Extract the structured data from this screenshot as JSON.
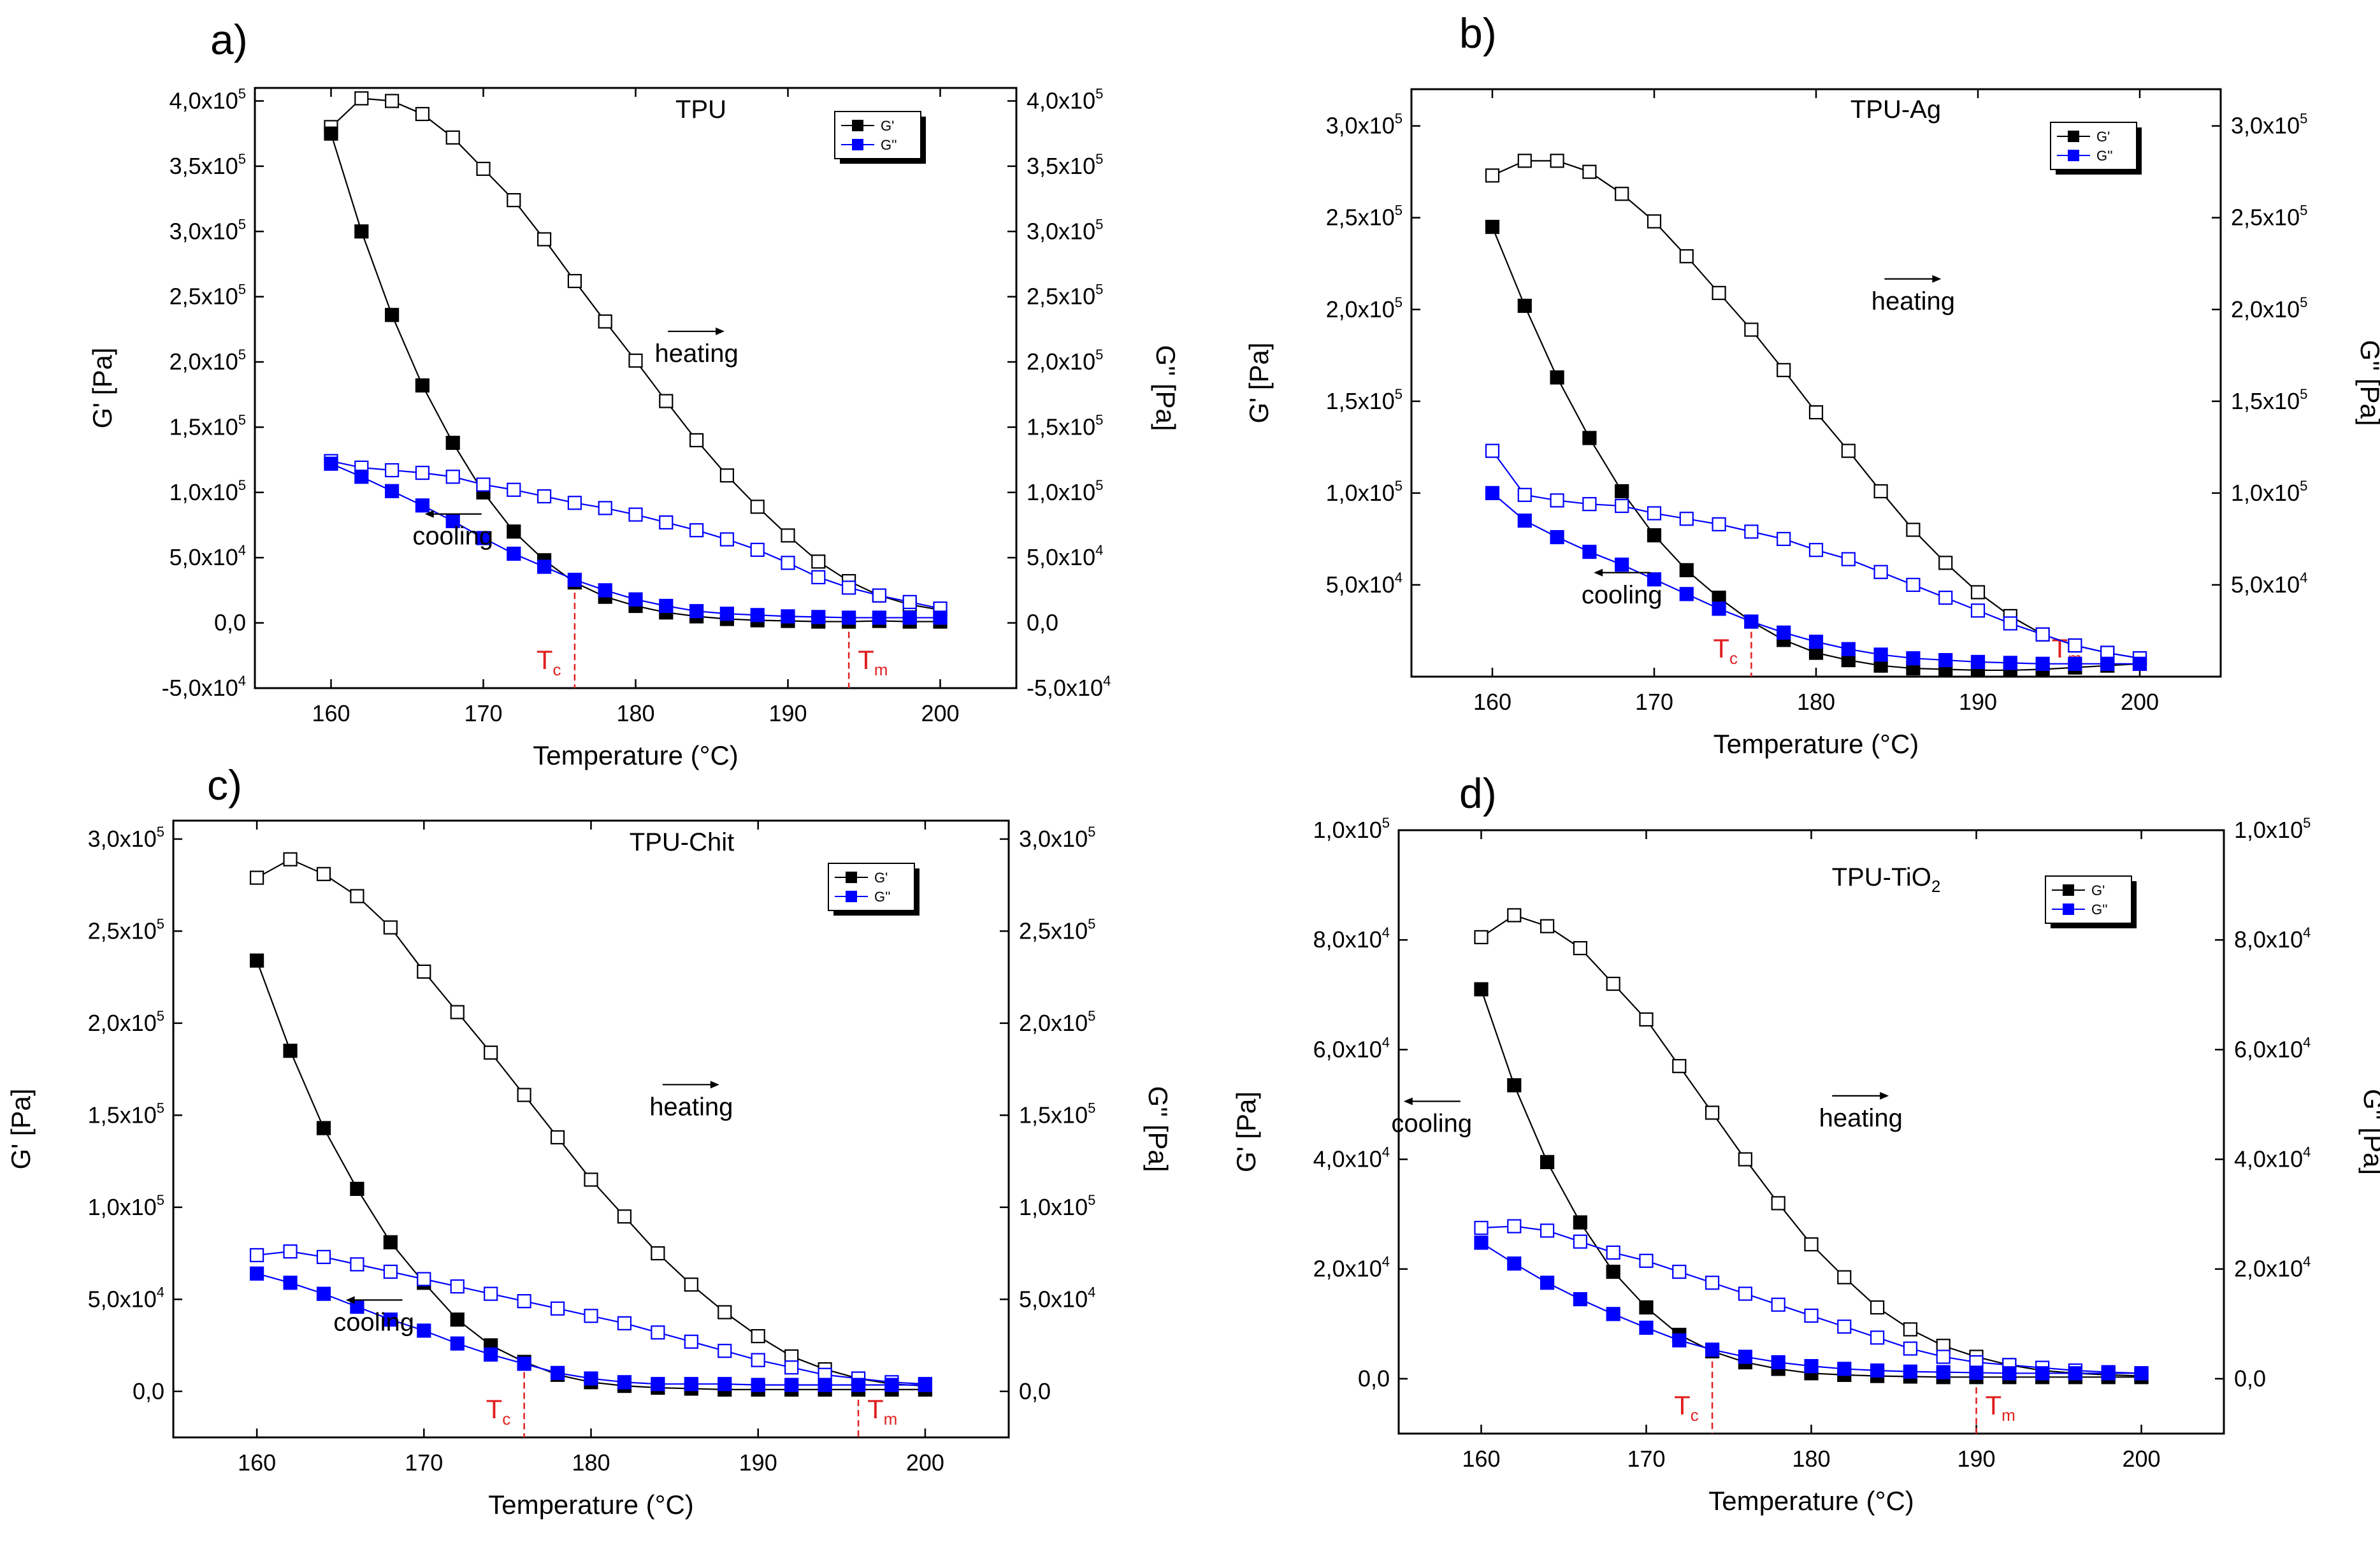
{
  "figure": {
    "x_axis_title": "Temperature (°C)",
    "left_axis_title": "G' [Pa]",
    "right_axis_title": "G'' [Pa]",
    "legend_labels": [
      "G'",
      "G''"
    ],
    "heating_label": "heating",
    "cooling_label": "cooling",
    "tc_label": "T",
    "tc_sub": "c",
    "tm_label": "T",
    "tm_sub": "m",
    "colors": {
      "g_prime": "#000000",
      "g_double_prime": "#0000ff",
      "transition_line": "#e02020"
    }
  },
  "chart_data": [
    {
      "type": "line",
      "panel": "a)",
      "title": "TPU",
      "xlabel": "Temperature (°C)",
      "ylabel": "G' [Pa]",
      "ylabel_right": "G'' [Pa]",
      "xlim": [
        155,
        205
      ],
      "ylim": [
        -50000,
        410000
      ],
      "x_ticks": [
        160,
        170,
        180,
        190,
        200
      ],
      "y_ticks": [
        {
          "v": -50000,
          "m": "-5,0",
          "e": "4"
        },
        {
          "v": 0,
          "m": "0,0",
          "e": ""
        },
        {
          "v": 50000,
          "m": "5,0",
          "e": "4"
        },
        {
          "v": 100000,
          "m": "1,0",
          "e": "5"
        },
        {
          "v": 150000,
          "m": "1,5",
          "e": "5"
        },
        {
          "v": 200000,
          "m": "2,0",
          "e": "5"
        },
        {
          "v": 250000,
          "m": "2,5",
          "e": "5"
        },
        {
          "v": 300000,
          "m": "3,0",
          "e": "5"
        },
        {
          "v": 350000,
          "m": "3,5",
          "e": "5"
        },
        {
          "v": 400000,
          "m": "4,0",
          "e": "5"
        }
      ],
      "x": [
        160,
        162,
        164,
        166,
        168,
        170,
        172,
        174,
        176,
        178,
        180,
        182,
        184,
        186,
        188,
        190,
        192,
        194,
        196,
        198,
        200
      ],
      "series": [
        {
          "name": "G' heating",
          "color": "#000000",
          "marker": "open",
          "values": [
            380000,
            402000,
            400000,
            390000,
            372000,
            348000,
            324000,
            294000,
            262000,
            231000,
            201000,
            170000,
            140000,
            113000,
            89000,
            67000,
            47000,
            32000,
            21000,
            14000,
            10000
          ]
        },
        {
          "name": "G' cooling",
          "color": "#000000",
          "marker": "filled",
          "values": [
            375000,
            300000,
            236000,
            182000,
            138000,
            100000,
            70000,
            48000,
            31000,
            20000,
            13000,
            8000,
            5000,
            3000,
            2000,
            1500,
            1000,
            1000,
            1500,
            1000,
            1000
          ]
        },
        {
          "name": "G'' heating",
          "color": "#0000ff",
          "marker": "open",
          "values": [
            124000,
            119000,
            117000,
            115000,
            112000,
            106000,
            102000,
            97000,
            92000,
            88000,
            83000,
            77000,
            71000,
            64000,
            56000,
            46000,
            35000,
            27000,
            21000,
            16000,
            11000
          ]
        },
        {
          "name": "G'' cooling",
          "color": "#0000ff",
          "marker": "filled",
          "values": [
            122000,
            112000,
            101000,
            90000,
            78000,
            65000,
            53000,
            43000,
            33000,
            25000,
            18000,
            13000,
            9000,
            7000,
            6000,
            5000,
            4500,
            4000,
            4000,
            4000,
            4000
          ]
        }
      ],
      "legend": [
        {
          "label": "G'",
          "color": "#000000"
        },
        {
          "label": "G''",
          "color": "#0000ff"
        }
      ],
      "heating_arrow_at": {
        "x": 184,
        "y": 200000
      },
      "cooling_arrow_at": {
        "x": 168,
        "y": 60000
      },
      "tc": 176,
      "tm": 194
    },
    {
      "type": "line",
      "panel": "b)",
      "title": "TPU-Ag",
      "xlabel": "Temperature (°C)",
      "ylabel": "G' [Pa]",
      "ylabel_right": "G'' [Pa]",
      "xlim": [
        155,
        205
      ],
      "ylim": [
        0,
        320000
      ],
      "x_ticks": [
        160,
        170,
        180,
        190,
        200
      ],
      "y_ticks": [
        {
          "v": 50000,
          "m": "5,0",
          "e": "4"
        },
        {
          "v": 100000,
          "m": "1,0",
          "e": "5"
        },
        {
          "v": 150000,
          "m": "1,5",
          "e": "5"
        },
        {
          "v": 200000,
          "m": "2,0",
          "e": "5"
        },
        {
          "v": 250000,
          "m": "2,5",
          "e": "5"
        },
        {
          "v": 300000,
          "m": "3,0",
          "e": "5"
        }
      ],
      "x": [
        160,
        162,
        164,
        166,
        168,
        170,
        172,
        174,
        176,
        178,
        180,
        182,
        184,
        186,
        188,
        190,
        192,
        194,
        196,
        198,
        200
      ],
      "series": [
        {
          "name": "G' heating",
          "color": "#000000",
          "marker": "open",
          "values": [
            273000,
            281000,
            281000,
            275000,
            263000,
            248000,
            229000,
            209000,
            189000,
            167000,
            144000,
            123000,
            101000,
            80000,
            62000,
            46000,
            33000,
            23000,
            17000,
            13000,
            10000
          ]
        },
        {
          "name": "G' cooling",
          "color": "#000000",
          "marker": "filled",
          "values": [
            245000,
            202000,
            163000,
            130000,
            101000,
            77000,
            58000,
            43000,
            30000,
            20000,
            13000,
            9000,
            6000,
            4500,
            4000,
            3500,
            3500,
            4000,
            5000,
            6000,
            7000
          ]
        },
        {
          "name": "G'' heating",
          "color": "#0000ff",
          "marker": "open",
          "values": [
            123000,
            99000,
            96000,
            94000,
            93000,
            89000,
            86000,
            83000,
            79000,
            75000,
            69000,
            64000,
            57000,
            50000,
            43000,
            36000,
            29000,
            23000,
            17000,
            13000,
            10000
          ]
        },
        {
          "name": "G'' cooling",
          "color": "#0000ff",
          "marker": "filled",
          "values": [
            100000,
            85000,
            76000,
            68000,
            61000,
            53000,
            45000,
            37000,
            30000,
            24000,
            19000,
            15000,
            12000,
            10000,
            9000,
            8000,
            7500,
            7000,
            7000,
            7000,
            7000
          ]
        }
      ],
      "legend": [
        {
          "label": "G'",
          "color": "#000000"
        },
        {
          "label": "G''",
          "color": "#0000ff"
        }
      ],
      "heating_arrow_at": {
        "x": 186,
        "y": 200000
      },
      "cooling_arrow_at": {
        "x": 168,
        "y": 40000
      },
      "tc": 176,
      "tm": 194
    },
    {
      "type": "line",
      "panel": "c)",
      "title": "TPU-Chit",
      "xlabel": "Temperature (°C)",
      "ylabel": "G' [Pa]",
      "ylabel_right": "G'' [Pa]",
      "xlim": [
        155,
        205
      ],
      "ylim": [
        -25000,
        310000
      ],
      "x_ticks": [
        160,
        170,
        180,
        190,
        200
      ],
      "y_ticks": [
        {
          "v": 0,
          "m": "0,0",
          "e": ""
        },
        {
          "v": 50000,
          "m": "5,0",
          "e": "4"
        },
        {
          "v": 100000,
          "m": "1,0",
          "e": "5"
        },
        {
          "v": 150000,
          "m": "1,5",
          "e": "5"
        },
        {
          "v": 200000,
          "m": "2,0",
          "e": "5"
        },
        {
          "v": 250000,
          "m": "2,5",
          "e": "5"
        },
        {
          "v": 300000,
          "m": "3,0",
          "e": "5"
        }
      ],
      "x": [
        160,
        162,
        164,
        166,
        168,
        170,
        172,
        174,
        176,
        178,
        180,
        182,
        184,
        186,
        188,
        190,
        192,
        194,
        196,
        198,
        200
      ],
      "series": [
        {
          "name": "G' heating",
          "color": "#000000",
          "marker": "open",
          "values": [
            279000,
            289000,
            281000,
            269000,
            252000,
            228000,
            206000,
            184000,
            161000,
            138000,
            115000,
            95000,
            75000,
            58000,
            43000,
            30000,
            19000,
            12000,
            7000,
            4000,
            3000
          ]
        },
        {
          "name": "G' cooling",
          "color": "#000000",
          "marker": "filled",
          "values": [
            234000,
            185000,
            143000,
            110000,
            81000,
            59000,
            39000,
            25000,
            16000,
            9000,
            5000,
            3000,
            2000,
            1500,
            1000,
            1000,
            1000,
            1000,
            1000,
            1000,
            1000
          ]
        },
        {
          "name": "G'' heating",
          "color": "#0000ff",
          "marker": "open",
          "values": [
            74000,
            76000,
            73000,
            69000,
            65000,
            61000,
            57000,
            53000,
            49000,
            45000,
            41000,
            37000,
            32000,
            27000,
            22000,
            17000,
            13000,
            9000,
            7000,
            5000,
            4000
          ]
        },
        {
          "name": "G'' cooling",
          "color": "#0000ff",
          "marker": "filled",
          "values": [
            64000,
            59000,
            53000,
            46000,
            39000,
            33000,
            26000,
            20000,
            15000,
            10000,
            7000,
            5000,
            4000,
            4000,
            4000,
            3500,
            3500,
            3500,
            3500,
            3500,
            3500
          ]
        }
      ],
      "legend": [
        {
          "label": "G'",
          "color": "#000000"
        },
        {
          "label": "G''",
          "color": "#0000ff"
        }
      ],
      "heating_arrow_at": {
        "x": 186,
        "y": 150000
      },
      "cooling_arrow_at": {
        "x": 167,
        "y": 33000
      },
      "tc": 176,
      "tm": 196
    },
    {
      "type": "line",
      "panel": "d)",
      "title": "TPU-TiO",
      "title_sub": "2",
      "xlabel": "Temperature (°C)",
      "ylabel": "G' [Pa]",
      "ylabel_right": "G'' [Pa]",
      "xlim": [
        155,
        205
      ],
      "ylim": [
        -10000,
        100000
      ],
      "x_ticks": [
        160,
        170,
        180,
        190,
        200
      ],
      "y_ticks": [
        {
          "v": 0,
          "m": "0,0",
          "e": ""
        },
        {
          "v": 20000,
          "m": "2,0",
          "e": "4"
        },
        {
          "v": 40000,
          "m": "4,0",
          "e": "4"
        },
        {
          "v": 60000,
          "m": "6,0",
          "e": "4"
        },
        {
          "v": 80000,
          "m": "8,0",
          "e": "4"
        },
        {
          "v": 100000,
          "m": "1,0",
          "e": "5"
        }
      ],
      "x": [
        160,
        162,
        164,
        166,
        168,
        170,
        172,
        174,
        176,
        178,
        180,
        182,
        184,
        186,
        188,
        190,
        192,
        194,
        196,
        198,
        200
      ],
      "series": [
        {
          "name": "G' heating",
          "color": "#000000",
          "marker": "open",
          "values": [
            80500,
            84500,
            82500,
            78500,
            72000,
            65500,
            57000,
            48500,
            40000,
            32000,
            24500,
            18500,
            13000,
            9000,
            6000,
            4000,
            2500,
            1500,
            1000,
            700,
            500
          ]
        },
        {
          "name": "G' cooling",
          "color": "#000000",
          "marker": "filled",
          "values": [
            71000,
            53500,
            39500,
            28500,
            19500,
            13000,
            8000,
            5000,
            3000,
            1800,
            1000,
            700,
            500,
            400,
            300,
            300,
            300,
            300,
            300,
            300,
            300
          ]
        },
        {
          "name": "G'' heating",
          "color": "#0000ff",
          "marker": "open",
          "values": [
            27500,
            27800,
            27000,
            25000,
            23000,
            21500,
            19500,
            17500,
            15500,
            13500,
            11500,
            9500,
            7500,
            5500,
            4000,
            3000,
            2500,
            2000,
            1500,
            1200,
            1000
          ]
        },
        {
          "name": "G'' cooling",
          "color": "#0000ff",
          "marker": "filled",
          "values": [
            24800,
            21000,
            17500,
            14500,
            11800,
            9300,
            7000,
            5300,
            4000,
            3000,
            2300,
            1800,
            1500,
            1300,
            1200,
            1100,
            1000,
            1000,
            1000,
            1000,
            1000
          ]
        }
      ],
      "legend": [
        {
          "label": "G'",
          "color": "#000000"
        },
        {
          "label": "G''",
          "color": "#0000ff"
        }
      ],
      "heating_arrow_at": {
        "x": 183,
        "y": 46000
      },
      "cooling_arrow_at": {
        "x": 157,
        "y": 45000
      },
      "tc": 174,
      "tm": 190
    }
  ]
}
